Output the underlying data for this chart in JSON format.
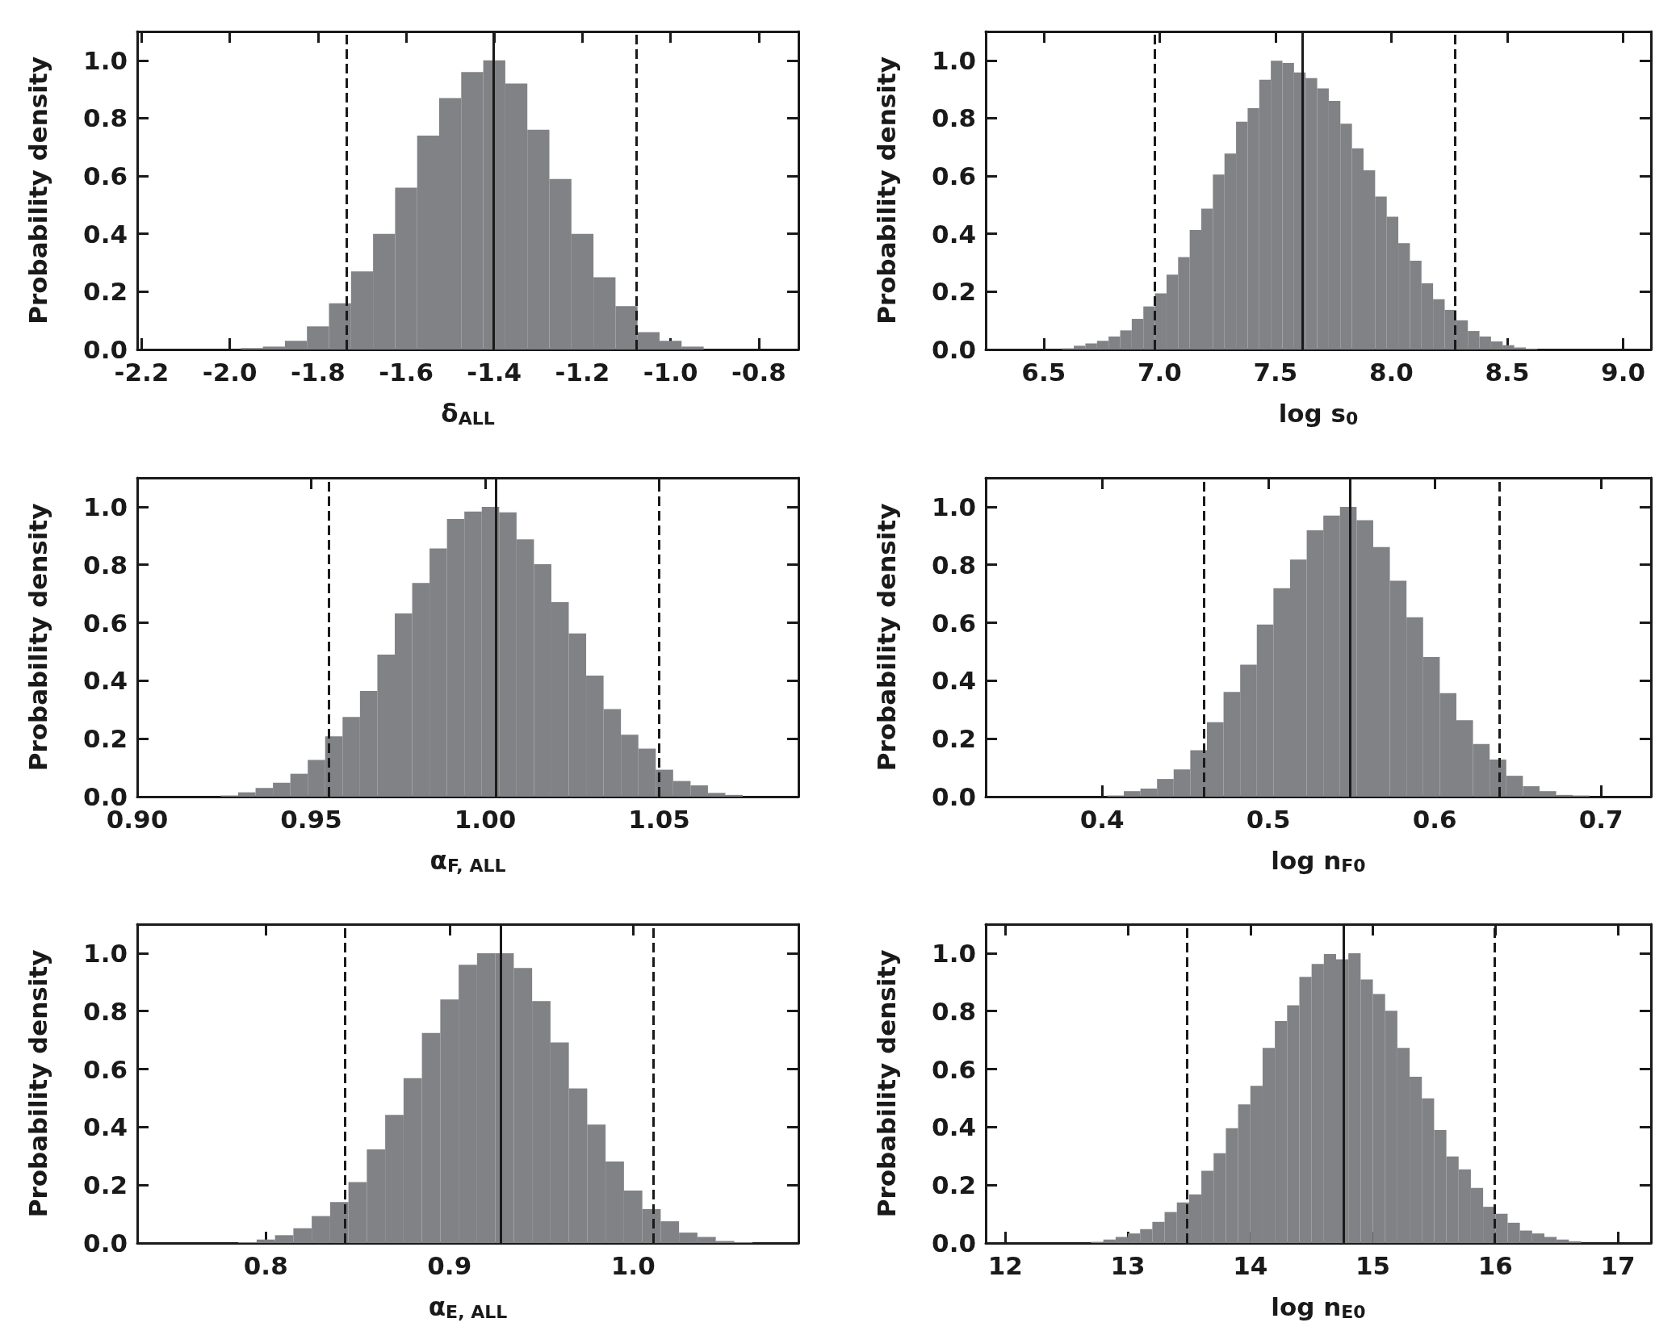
{
  "chart_data": [
    {
      "type": "histogram",
      "xlabel": "δ$_{ALL}$",
      "ylabel": "Probability density",
      "color": "#808285",
      "bins": [
        -1.975,
        -1.925,
        -1.875,
        -1.825,
        -1.775,
        -1.725,
        -1.675,
        -1.625,
        -1.575,
        -1.525,
        -1.475,
        -1.425,
        -1.375,
        -1.325,
        -1.275,
        -1.225,
        -1.175,
        -1.125,
        -1.075,
        -1.025,
        -0.975,
        -0.925
      ],
      "values": [
        0.005,
        0.01,
        0.03,
        0.08,
        0.16,
        0.27,
        0.4,
        0.56,
        0.74,
        0.87,
        0.96,
        1.0,
        0.92,
        0.76,
        0.59,
        0.4,
        0.25,
        0.15,
        0.06,
        0.03,
        0.01
      ],
      "xlim": [
        -2.21,
        -0.71
      ],
      "xticks": [
        {
          "value": -2.2,
          "label": "-2.2"
        },
        {
          "value": -2.0,
          "label": "-2.0"
        },
        {
          "value": -1.8,
          "label": "-1.8"
        },
        {
          "value": -1.6,
          "label": "-1.6"
        },
        {
          "value": -1.4,
          "label": "-1.4"
        },
        {
          "value": -1.2,
          "label": "-1.2"
        },
        {
          "value": -1.0,
          "label": "-1.0"
        },
        {
          "value": -0.8,
          "label": "-0.8"
        }
      ],
      "ylim": [
        0,
        1.1
      ],
      "yticks": [
        {
          "value": 0,
          "label": "0.0"
        },
        {
          "value": 0.2,
          "label": "0.2"
        },
        {
          "value": 0.4,
          "label": "0.4"
        },
        {
          "value": 0.6,
          "label": "0.6"
        },
        {
          "value": 0.8,
          "label": "0.8"
        },
        {
          "value": 1.0,
          "label": "1.0"
        }
      ],
      "ref_lines": [
        {
          "axis": "x",
          "value": -1.402,
          "color": "#1a1a1a",
          "line_style": "solid"
        },
        {
          "axis": "x",
          "value": -1.736,
          "color": "#1a1a1a",
          "line_style": "dashed"
        },
        {
          "axis": "x",
          "value": -1.078,
          "color": "#1a1a1a",
          "line_style": "dashed"
        }
      ]
    },
    {
      "type": "histogram",
      "xlabel": "log s$_{0}$",
      "ylabel": "Probability density",
      "color": "#808285",
      "bins": [
        6.58,
        6.63,
        6.68,
        6.73,
        6.78,
        6.83,
        6.88,
        6.93,
        6.98,
        7.03,
        7.08,
        7.13,
        7.18,
        7.23,
        7.28,
        7.33,
        7.38,
        7.43,
        7.48,
        7.53,
        7.58,
        7.63,
        7.68,
        7.73,
        7.78,
        7.83,
        7.88,
        7.93,
        7.98,
        8.03,
        8.08,
        8.13,
        8.18,
        8.23,
        8.28,
        8.33,
        8.38,
        8.43,
        8.48,
        8.53,
        8.58,
        8.63
      ],
      "values": [
        0.004,
        0.013,
        0.021,
        0.03,
        0.045,
        0.066,
        0.106,
        0.149,
        0.194,
        0.259,
        0.32,
        0.413,
        0.487,
        0.605,
        0.678,
        0.788,
        0.835,
        0.933,
        0.999,
        0.991,
        0.958,
        0.939,
        0.903,
        0.86,
        0.781,
        0.696,
        0.62,
        0.529,
        0.459,
        0.368,
        0.307,
        0.229,
        0.174,
        0.137,
        0.101,
        0.064,
        0.045,
        0.028,
        0.015,
        0.007,
        0.003
      ],
      "xlim": [
        6.25,
        9.12
      ],
      "xticks": [
        6.5,
        {
          "value": 7.0,
          "label": "7.0"
        },
        7.5,
        {
          "value": 8.0,
          "label": "8.0"
        },
        8.5,
        {
          "value": 9.0,
          "label": "9.0"
        }
      ],
      "ylim": [
        0,
        1.1
      ],
      "yticks": [
        {
          "value": 0,
          "label": "0.0"
        },
        {
          "value": 0.2,
          "label": "0.2"
        },
        {
          "value": 0.4,
          "label": "0.4"
        },
        {
          "value": 0.6,
          "label": "0.6"
        },
        {
          "value": 0.8,
          "label": "0.8"
        },
        {
          "value": 1.0,
          "label": "1.0"
        }
      ],
      "ref_lines": [
        {
          "axis": "x",
          "value": 7.617,
          "color": "#1a1a1a",
          "line_style": "solid"
        },
        {
          "axis": "x",
          "value": 6.98,
          "color": "#1a1a1a",
          "line_style": "dashed"
        },
        {
          "axis": "x",
          "value": 8.273,
          "color": "#1a1a1a",
          "line_style": "dashed"
        }
      ]
    },
    {
      "type": "histogram",
      "xlabel": "α$_{F, ALL}$",
      "ylabel": "Probability density",
      "color": "#808285",
      "bins": [
        0.924,
        0.929,
        0.934,
        0.939,
        0.944,
        0.949,
        0.954,
        0.959,
        0.964,
        0.969,
        0.974,
        0.979,
        0.984,
        0.989,
        0.994,
        0.999,
        1.004,
        1.009,
        1.014,
        1.019,
        1.024,
        1.029,
        1.034,
        1.039,
        1.044,
        1.049,
        1.054,
        1.059,
        1.064,
        1.069,
        1.074
      ],
      "values": [
        0.004,
        0.015,
        0.03,
        0.048,
        0.079,
        0.127,
        0.208,
        0.275,
        0.365,
        0.49,
        0.632,
        0.737,
        0.856,
        0.958,
        0.984,
        1.0,
        0.981,
        0.888,
        0.802,
        0.671,
        0.563,
        0.418,
        0.302,
        0.214,
        0.166,
        0.093,
        0.054,
        0.039,
        0.013,
        0.006
      ],
      "xlim": [
        0.9,
        1.09
      ],
      "xticks": [
        {
          "value": 0.9,
          "label": "0.90"
        },
        0.95,
        {
          "value": 1.0,
          "label": "1.00"
        },
        1.05
      ],
      "ylim": [
        0,
        1.1
      ],
      "yticks": [
        {
          "value": 0,
          "label": "0.0"
        },
        {
          "value": 0.2,
          "label": "0.2"
        },
        {
          "value": 0.4,
          "label": "0.4"
        },
        {
          "value": 0.6,
          "label": "0.6"
        },
        {
          "value": 0.8,
          "label": "0.8"
        },
        {
          "value": 1.0,
          "label": "1.0"
        }
      ],
      "ref_lines": [
        {
          "axis": "x",
          "value": 1.003,
          "color": "#1a1a1a",
          "line_style": "solid"
        },
        {
          "axis": "x",
          "value": 0.955,
          "color": "#1a1a1a",
          "line_style": "dashed"
        },
        {
          "axis": "x",
          "value": 1.05,
          "color": "#1a1a1a",
          "line_style": "dashed"
        }
      ]
    },
    {
      "type": "histogram",
      "xlabel": "log n$_{F0}$",
      "ylabel": "Probability density",
      "color": "#808285",
      "bins": [
        0.403,
        0.413,
        0.423,
        0.433,
        0.443,
        0.453,
        0.463,
        0.473,
        0.483,
        0.493,
        0.503,
        0.513,
        0.523,
        0.533,
        0.543,
        0.553,
        0.563,
        0.573,
        0.583,
        0.593,
        0.603,
        0.613,
        0.623,
        0.633,
        0.643,
        0.653,
        0.663,
        0.673,
        0.683,
        0.693
      ],
      "values": [
        0.004,
        0.019,
        0.028,
        0.061,
        0.094,
        0.16,
        0.257,
        0.361,
        0.455,
        0.594,
        0.719,
        0.818,
        0.919,
        0.97,
        1.0,
        0.954,
        0.861,
        0.745,
        0.619,
        0.482,
        0.357,
        0.264,
        0.182,
        0.128,
        0.072,
        0.036,
        0.019,
        0.006,
        0.004
      ],
      "xlim": [
        0.33,
        0.73
      ],
      "xticks": [
        0.4,
        0.5,
        0.6,
        0.7
      ],
      "ylim": [
        0,
        1.1
      ],
      "yticks": [
        {
          "value": 0,
          "label": "0.0"
        },
        {
          "value": 0.2,
          "label": "0.2"
        },
        {
          "value": 0.4,
          "label": "0.4"
        },
        {
          "value": 0.6,
          "label": "0.6"
        },
        {
          "value": 0.8,
          "label": "0.8"
        },
        {
          "value": 1.0,
          "label": "1.0"
        }
      ],
      "ref_lines": [
        {
          "axis": "x",
          "value": 0.549,
          "color": "#1a1a1a",
          "line_style": "solid"
        },
        {
          "axis": "x",
          "value": 0.461,
          "color": "#1a1a1a",
          "line_style": "dashed"
        },
        {
          "axis": "x",
          "value": 0.639,
          "color": "#1a1a1a",
          "line_style": "dashed"
        }
      ]
    },
    {
      "type": "histogram",
      "xlabel": "α$_{E, ALL}$",
      "ylabel": "Probability density",
      "color": "#808285",
      "bins": [
        0.785,
        0.795,
        0.805,
        0.815,
        0.825,
        0.835,
        0.845,
        0.855,
        0.865,
        0.875,
        0.885,
        0.895,
        0.905,
        0.915,
        0.925,
        0.935,
        0.945,
        0.955,
        0.965,
        0.975,
        0.985,
        0.995,
        1.005,
        1.015,
        1.025,
        1.035,
        1.045,
        1.055,
        1.065
      ],
      "values": [
        0.003,
        0.012,
        0.027,
        0.051,
        0.093,
        0.141,
        0.21,
        0.323,
        0.442,
        0.569,
        0.725,
        0.84,
        0.96,
        1.0,
        1.0,
        0.949,
        0.835,
        0.692,
        0.533,
        0.409,
        0.281,
        0.181,
        0.117,
        0.075,
        0.036,
        0.021,
        0.007,
        0.003
      ],
      "xlim": [
        0.73,
        1.09
      ],
      "xticks": [
        0.8,
        0.9,
        {
          "value": 1.0,
          "label": "1.0"
        }
      ],
      "ylim": [
        0,
        1.1
      ],
      "yticks": [
        {
          "value": 0,
          "label": "0.0"
        },
        {
          "value": 0.2,
          "label": "0.2"
        },
        {
          "value": 0.4,
          "label": "0.4"
        },
        {
          "value": 0.6,
          "label": "0.6"
        },
        {
          "value": 0.8,
          "label": "0.8"
        },
        {
          "value": 1.0,
          "label": "1.0"
        }
      ],
      "ref_lines": [
        {
          "axis": "x",
          "value": 0.928,
          "color": "#1a1a1a",
          "line_style": "solid"
        },
        {
          "axis": "x",
          "value": 0.843,
          "color": "#1a1a1a",
          "line_style": "dashed"
        },
        {
          "axis": "x",
          "value": 1.011,
          "color": "#1a1a1a",
          "line_style": "dashed"
        }
      ]
    },
    {
      "type": "histogram",
      "xlabel": "log n$_{E0}$",
      "ylabel": "Probability density",
      "color": "#808285",
      "bins": [
        12.7,
        12.8,
        12.9,
        13.0,
        13.1,
        13.2,
        13.3,
        13.4,
        13.5,
        13.6,
        13.7,
        13.8,
        13.9,
        14.0,
        14.1,
        14.2,
        14.3,
        14.4,
        14.5,
        14.6,
        14.7,
        14.8,
        14.9,
        15.0,
        15.1,
        15.2,
        15.3,
        15.4,
        15.5,
        15.6,
        15.7,
        15.8,
        15.9,
        16.0,
        16.1,
        16.2,
        16.3,
        16.4,
        16.5,
        16.6,
        16.7
      ],
      "values": [
        0.004,
        0.012,
        0.021,
        0.033,
        0.048,
        0.073,
        0.107,
        0.14,
        0.168,
        0.249,
        0.31,
        0.396,
        0.478,
        0.542,
        0.673,
        0.766,
        0.82,
        0.918,
        0.963,
        0.997,
        0.979,
        1.0,
        0.909,
        0.859,
        0.801,
        0.673,
        0.574,
        0.499,
        0.39,
        0.299,
        0.254,
        0.19,
        0.125,
        0.101,
        0.07,
        0.043,
        0.033,
        0.021,
        0.012,
        0.006
      ],
      "xlim": [
        11.84,
        17.27
      ],
      "xticks": [
        12,
        13,
        14,
        15,
        16,
        17
      ],
      "ylim": [
        0,
        1.1
      ],
      "yticks": [
        {
          "value": 0,
          "label": "0.0"
        },
        {
          "value": 0.2,
          "label": "0.2"
        },
        {
          "value": 0.4,
          "label": "0.4"
        },
        {
          "value": 0.6,
          "label": "0.6"
        },
        {
          "value": 0.8,
          "label": "0.8"
        },
        {
          "value": 1.0,
          "label": "1.0"
        }
      ],
      "ref_lines": [
        {
          "axis": "x",
          "value": 14.76,
          "color": "#1a1a1a",
          "line_style": "solid"
        },
        {
          "axis": "x",
          "value": 13.48,
          "color": "#1a1a1a",
          "line_style": "dashed"
        },
        {
          "axis": "x",
          "value": 15.99,
          "color": "#1a1a1a",
          "line_style": "dashed"
        }
      ]
    }
  ]
}
